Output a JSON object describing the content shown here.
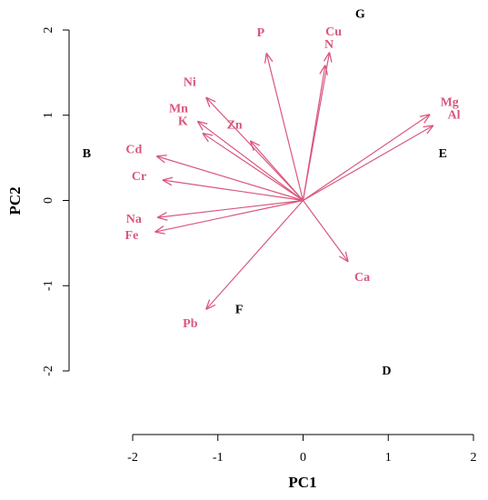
{
  "chart_data": {
    "type": "biplot",
    "xlabel": "PC1",
    "ylabel": "PC2",
    "xlim": [
      -2,
      2
    ],
    "ylim": [
      -2,
      2
    ],
    "xticks": [
      -2,
      -1,
      0,
      1,
      2
    ],
    "yticks": [
      -2,
      -1,
      0,
      1,
      2
    ],
    "samples": {
      "color": "#000000",
      "labels": [
        "B",
        "G",
        "E",
        "F",
        "D"
      ],
      "x": [
        -2.54,
        0.67,
        1.64,
        -0.75,
        0.98
      ],
      "y": [
        0.54,
        2.18,
        0.54,
        -1.29,
        -2.01
      ]
    },
    "loadings": {
      "color": "#d9577d",
      "labels": [
        "P",
        "N",
        "Cu",
        "Mg",
        "Al",
        "Ni",
        "Mn",
        "K",
        "Zn",
        "Cd",
        "Cr",
        "Na",
        "Fe",
        "Ca",
        "Pb"
      ],
      "x": [
        -0.43,
        0.26,
        0.31,
        1.49,
        1.53,
        -1.14,
        -1.24,
        -1.18,
        -0.62,
        -1.72,
        -1.65,
        -1.71,
        -1.74,
        0.53,
        -1.14
      ],
      "y": [
        1.73,
        1.59,
        1.74,
        1.01,
        0.88,
        1.21,
        0.93,
        0.79,
        0.7,
        0.52,
        0.24,
        -0.2,
        -0.37,
        -0.72,
        -1.28
      ]
    }
  }
}
